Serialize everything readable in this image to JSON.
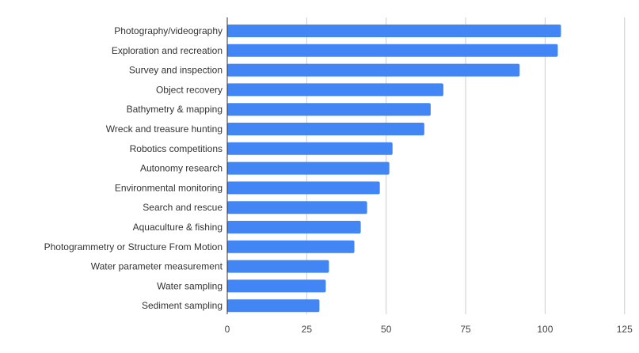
{
  "chart_data": {
    "type": "bar",
    "orientation": "horizontal",
    "title": "",
    "xlabel": "",
    "ylabel": "",
    "xlim": [
      0,
      125
    ],
    "xticks": [
      0,
      25,
      50,
      75,
      100,
      125
    ],
    "grid": true,
    "bar_color": "#4285f4",
    "categories": [
      "Photography/videography",
      "Exploration and recreation",
      "Survey and inspection",
      "Object recovery",
      "Bathymetry & mapping",
      "Wreck and treasure hunting",
      "Robotics competitions",
      "Autonomy research",
      "Environmental monitoring",
      "Search and rescue",
      "Aquaculture & fishing",
      "Photogrammetry or Structure From Motion",
      "Water parameter measurement",
      "Water sampling",
      "Sediment sampling"
    ],
    "values": [
      105,
      104,
      92,
      68,
      64,
      62,
      52,
      51,
      48,
      44,
      42,
      40,
      32,
      31,
      29
    ]
  }
}
